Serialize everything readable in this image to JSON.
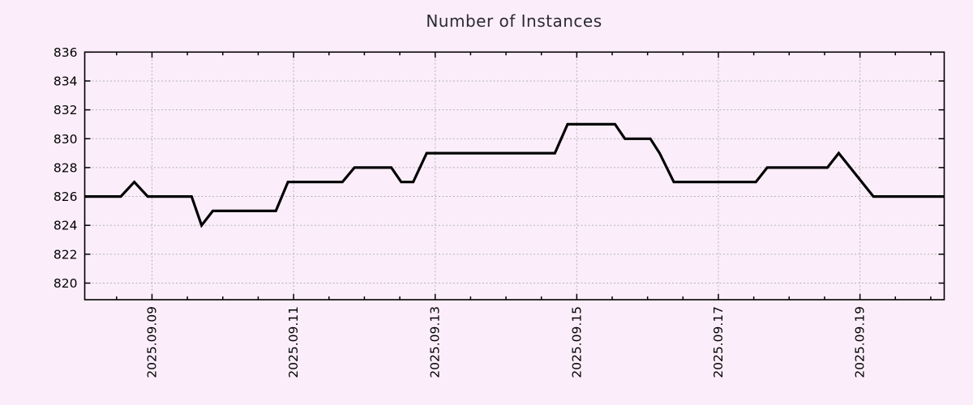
{
  "colors": {
    "background": "#fbeefa",
    "grid": "#b3b3b3",
    "axis": "#000000",
    "title": "#2a2a31",
    "tick_label": "#000000",
    "line": "#000000"
  },
  "chart_data": {
    "type": "line",
    "title": "Number of Instances",
    "x_axis": {
      "unit": "date",
      "tick_labels": [
        "2025.09.09",
        "2025.09.11",
        "2025.09.13",
        "2025.09.15",
        "2025.09.17",
        "2025.09.19"
      ],
      "tick_days": [
        9,
        11,
        13,
        15,
        17,
        19
      ],
      "minor_tick_step_days": 0.5,
      "range_days": [
        8.05,
        20.19
      ],
      "label_rotation_deg": -90
    },
    "y_axis": {
      "ticks": [
        820,
        822,
        824,
        826,
        828,
        830,
        832,
        834,
        836
      ],
      "range": [
        818.85,
        836
      ]
    },
    "grid": {
      "visible": true,
      "style": "dashed"
    },
    "legend": "none",
    "series": [
      {
        "name": "Number of Instances",
        "color": "#000000",
        "points": [
          [
            8.05,
            826
          ],
          [
            8.56,
            826
          ],
          [
            8.75,
            827
          ],
          [
            8.94,
            826
          ],
          [
            9.56,
            826
          ],
          [
            9.7,
            824
          ],
          [
            9.86,
            825
          ],
          [
            10.75,
            825
          ],
          [
            10.92,
            827
          ],
          [
            11.69,
            827
          ],
          [
            11.86,
            828
          ],
          [
            12.38,
            828
          ],
          [
            12.52,
            827
          ],
          [
            12.69,
            827
          ],
          [
            12.88,
            829
          ],
          [
            14.69,
            829
          ],
          [
            14.87,
            831
          ],
          [
            15.54,
            831
          ],
          [
            15.68,
            830
          ],
          [
            16.04,
            830
          ],
          [
            16.17,
            829
          ],
          [
            16.37,
            827
          ],
          [
            17.53,
            827
          ],
          [
            17.69,
            828
          ],
          [
            18.54,
            828
          ],
          [
            18.7,
            829
          ],
          [
            19.19,
            826
          ],
          [
            20.19,
            826
          ]
        ]
      }
    ]
  }
}
